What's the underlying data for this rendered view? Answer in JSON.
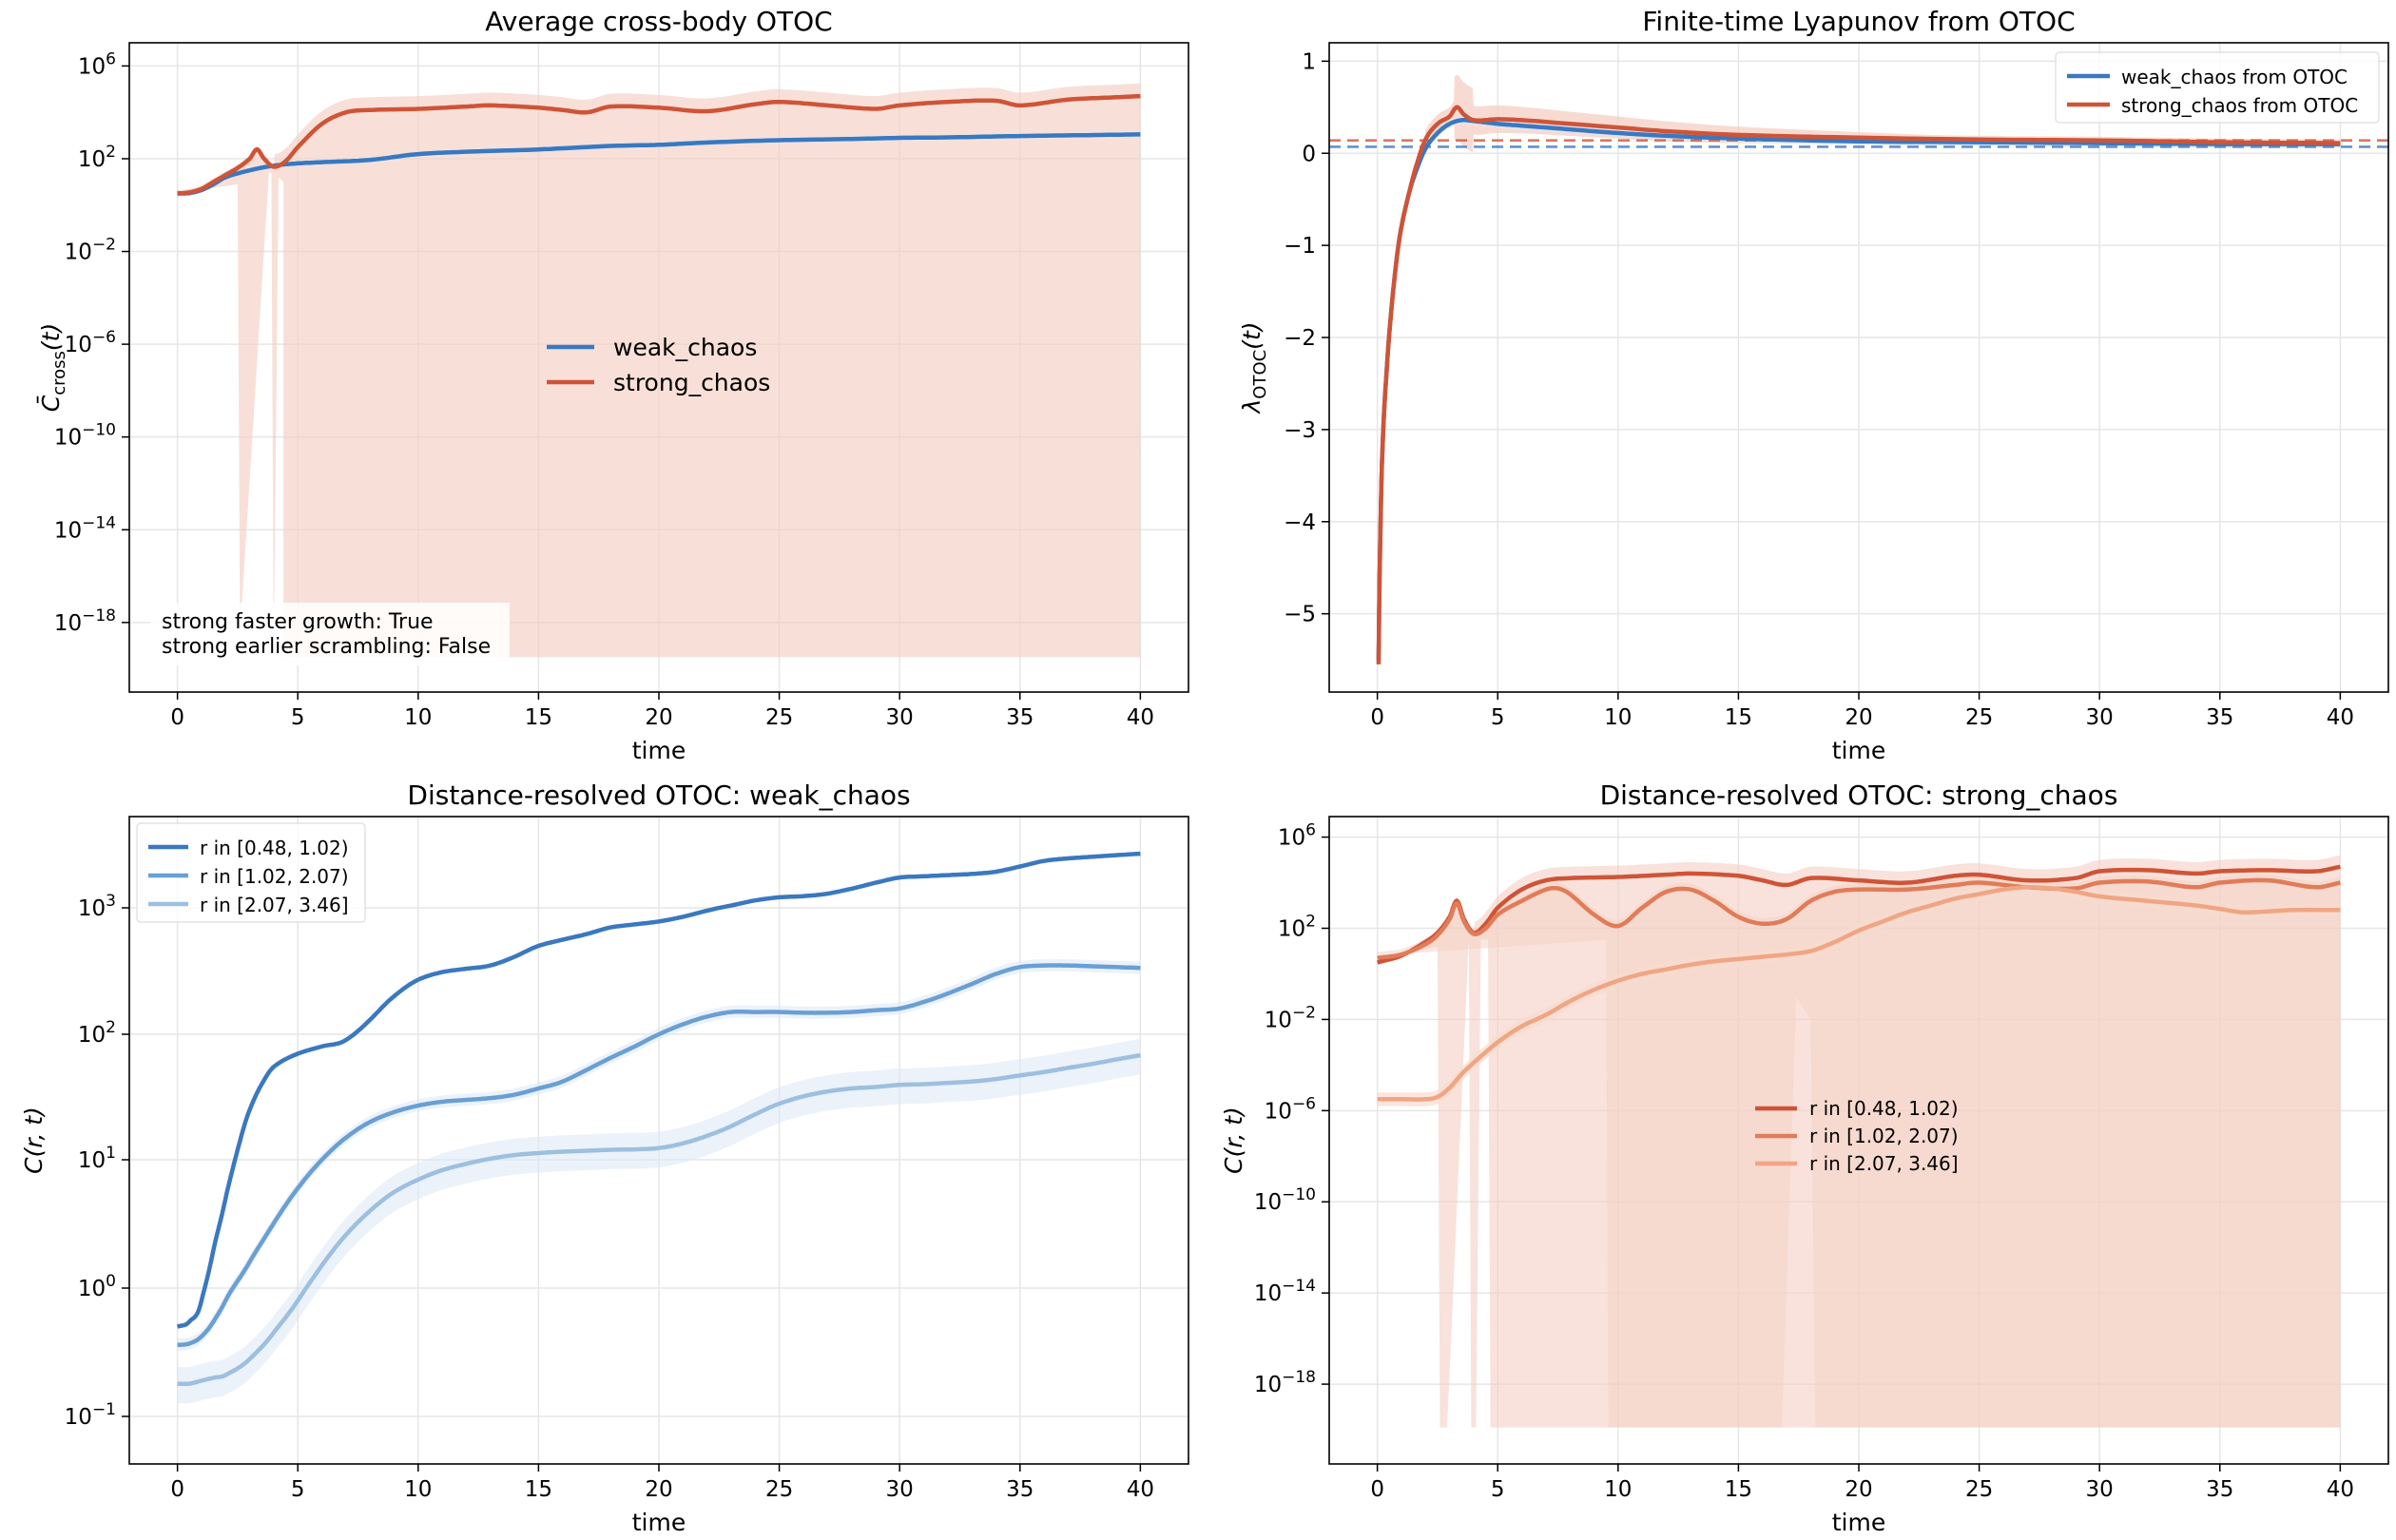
{
  "colors": {
    "weak": "#3a78bf",
    "weak_mid": "#6a9fd4",
    "weak_light": "#9dbfe0",
    "weak_band": "#dbe7f6",
    "strong": "#cf5437",
    "strong_mid": "#e17c58",
    "strong_light": "#f0a584",
    "strong_band": "#f4cfc3"
  },
  "chart_data": [
    {
      "id": "p1",
      "type": "line",
      "title": "Average cross-body OTOC",
      "xlabel": "time",
      "ylabel": "C̄cross(t)",
      "yscale": "log",
      "xlim": [
        -2,
        42
      ],
      "ylim_log10": [
        -21,
        7
      ],
      "xticks": [
        "0",
        "5",
        "10",
        "15",
        "20",
        "25",
        "30",
        "35",
        "40"
      ],
      "yticks": [
        "10^6",
        "10^2",
        "10^-2",
        "10^-6",
        "10^-10",
        "10^-14",
        "10^-18"
      ],
      "legend": {
        "position": "center",
        "entries": [
          "weak_chaos",
          "strong_chaos"
        ]
      },
      "annotation": [
        "strong faster growth: True",
        "strong earlier scrambling: False"
      ],
      "series": [
        {
          "name": "weak_chaos",
          "color_key": "weak",
          "x": [
            0,
            0.5,
            1,
            1.5,
            2,
            3,
            4,
            5,
            6,
            8,
            10,
            12,
            15,
            18,
            20,
            22,
            25,
            28,
            30,
            32,
            35,
            38,
            40
          ],
          "log10y": [
            0.5,
            0.52,
            0.65,
            0.9,
            1.2,
            1.5,
            1.7,
            1.8,
            1.85,
            1.95,
            2.2,
            2.3,
            2.4,
            2.55,
            2.6,
            2.7,
            2.8,
            2.85,
            2.9,
            2.92,
            2.98,
            3.02,
            3.05
          ]
        },
        {
          "name": "strong_chaos",
          "color_key": "strong",
          "x": [
            0,
            0.5,
            1,
            1.5,
            2,
            2.5,
            3,
            3.3,
            3.6,
            4,
            4.5,
            5,
            6,
            7,
            8,
            10,
            12,
            13,
            15,
            16,
            17,
            18,
            20,
            22,
            24,
            25,
            27,
            29,
            30,
            32,
            34,
            35,
            37,
            39,
            40
          ],
          "log10y": [
            0.5,
            0.55,
            0.7,
            1,
            1.3,
            1.6,
            2,
            2.4,
            2,
            1.65,
            1.9,
            2.5,
            3.5,
            4,
            4.1,
            4.15,
            4.25,
            4.3,
            4.2,
            4.1,
            4,
            4.25,
            4.2,
            4.05,
            4.35,
            4.45,
            4.3,
            4.15,
            4.3,
            4.45,
            4.5,
            4.3,
            4.55,
            4.65,
            4.7
          ]
        }
      ]
    },
    {
      "id": "p2",
      "type": "line",
      "title": "Finite-time Lyapunov from OTOC",
      "xlabel": "time",
      "ylabel": "λOTOC(t)",
      "yscale": "linear",
      "xlim": [
        -2,
        42
      ],
      "ylim": [
        -5.85,
        1.2
      ],
      "xticks": [
        "0",
        "5",
        "10",
        "15",
        "20",
        "25",
        "30",
        "35",
        "40"
      ],
      "yticks": [
        "1",
        "0",
        "−1",
        "−2",
        "−3",
        "−4",
        "−5"
      ],
      "legend": {
        "position": "upper right",
        "entries": [
          "weak_chaos from OTOC",
          "strong_chaos from OTOC"
        ]
      },
      "hlines": [
        {
          "y": 0.07,
          "color_key": "weak"
        },
        {
          "y": 0.14,
          "color_key": "strong"
        }
      ],
      "series": [
        {
          "name": "weak_chaos from OTOC",
          "color_key": "weak",
          "x": [
            0.05,
            0.1,
            0.2,
            0.4,
            0.6,
            0.8,
            1,
            1.3,
            1.6,
            2,
            2.5,
            3,
            3.5,
            4,
            5,
            6,
            8,
            10,
            12,
            15,
            20,
            25,
            30,
            35,
            40
          ],
          "y": [
            -5.5,
            -4.5,
            -3.3,
            -2.3,
            -1.65,
            -1.15,
            -0.8,
            -0.45,
            -0.2,
            0.05,
            0.22,
            0.32,
            0.36,
            0.35,
            0.32,
            0.3,
            0.26,
            0.22,
            0.19,
            0.16,
            0.13,
            0.12,
            0.11,
            0.1,
            0.1
          ]
        },
        {
          "name": "strong_chaos from OTOC",
          "color_key": "strong",
          "x": [
            0.05,
            0.1,
            0.2,
            0.4,
            0.6,
            0.8,
            1,
            1.3,
            1.6,
            2,
            2.5,
            3,
            3.3,
            3.6,
            4,
            5,
            6,
            8,
            10,
            12,
            15,
            20,
            25,
            30,
            35,
            40
          ],
          "y": [
            -5.55,
            -4.5,
            -3.3,
            -2.3,
            -1.65,
            -1.15,
            -0.8,
            -0.45,
            -0.15,
            0.15,
            0.32,
            0.4,
            0.5,
            0.42,
            0.36,
            0.37,
            0.36,
            0.32,
            0.28,
            0.24,
            0.2,
            0.17,
            0.15,
            0.14,
            0.12,
            0.11
          ]
        }
      ]
    },
    {
      "id": "p3",
      "type": "line",
      "title": "Distance-resolved OTOC: weak_chaos",
      "xlabel": "time",
      "ylabel": "C(r, t)",
      "yscale": "symlog",
      "xlim": [
        -2,
        42
      ],
      "xticks": [
        "0",
        "5",
        "10",
        "15",
        "20",
        "25",
        "30",
        "35",
        "40"
      ],
      "yticks": [
        "10^3",
        "10^2",
        "10^1",
        "10^0",
        "10^-1"
      ],
      "legend": {
        "position": "upper left",
        "entries": [
          "r in [0.48, 1.02)",
          "r in [1.02, 2.07)",
          "r in [2.07, 3.46]"
        ]
      },
      "series": [
        {
          "name": "r in [0.48, 1.02)",
          "color_key": "weak",
          "x": [
            0,
            0.5,
            1,
            1.5,
            2,
            2.5,
            3,
            3.5,
            4,
            5,
            6,
            7,
            8,
            9,
            10,
            11,
            12,
            13,
            14,
            15,
            16,
            17,
            18,
            19,
            20,
            21,
            22,
            23,
            24,
            25,
            26,
            27,
            28,
            29,
            30,
            31,
            32,
            33,
            34,
            35,
            36,
            37,
            38,
            39,
            40
          ],
          "y": [
            0.5,
            0.55,
            0.8,
            2,
            5,
            12,
            25,
            40,
            55,
            70,
            80,
            90,
            130,
            200,
            270,
            310,
            330,
            350,
            410,
            500,
            560,
            620,
            700,
            740,
            780,
            850,
            950,
            1050,
            1170,
            1250,
            1280,
            1350,
            1500,
            1700,
            1900,
            1950,
            2000,
            2050,
            2150,
            2400,
            2700,
            2850,
            2950,
            3050,
            3150
          ]
        },
        {
          "name": "r in [1.02, 2.07)",
          "color_key": "weak_mid",
          "x": [
            0,
            0.5,
            1,
            1.5,
            2,
            3,
            4,
            5,
            6,
            7,
            8,
            9,
            10,
            11,
            12,
            13,
            14,
            15,
            16,
            17,
            18,
            19,
            20,
            21,
            22,
            23,
            24,
            25,
            26,
            27,
            28,
            29,
            30,
            31,
            32,
            33,
            34,
            35,
            36,
            37,
            38,
            39,
            40
          ],
          "y": [
            0.36,
            0.37,
            0.42,
            0.55,
            0.8,
            1.6,
            3.2,
            6,
            10,
            15,
            20,
            24,
            27,
            29,
            30,
            31,
            33,
            37,
            42,
            52,
            65,
            80,
            100,
            120,
            138,
            150,
            150,
            150,
            148,
            148,
            150,
            155,
            160,
            180,
            210,
            250,
            300,
            340,
            350,
            350,
            345,
            340,
            335
          ]
        },
        {
          "name": "r in [2.07, 3.46]",
          "color_key": "weak_light",
          "x": [
            0,
            0.5,
            1,
            1.5,
            2,
            3,
            4,
            5,
            6,
            7,
            8,
            9,
            10,
            11,
            12,
            13,
            14,
            15,
            16,
            17,
            18,
            19,
            20,
            21,
            22,
            23,
            24,
            25,
            26,
            27,
            28,
            29,
            30,
            31,
            32,
            33,
            34,
            35,
            36,
            37,
            38,
            39,
            40
          ],
          "y": [
            0.18,
            0.18,
            0.19,
            0.2,
            0.21,
            0.28,
            0.45,
            0.8,
            1.5,
            2.6,
            4,
            5.6,
            7,
            8.3,
            9.3,
            10.2,
            10.9,
            11.3,
            11.6,
            11.8,
            12,
            12.1,
            12.4,
            13.5,
            15.5,
            18.5,
            23,
            28,
            32,
            35,
            37,
            38,
            39.5,
            40,
            41,
            42,
            44,
            47,
            50,
            54,
            58,
            63,
            68
          ]
        }
      ]
    },
    {
      "id": "p4",
      "type": "line",
      "title": "Distance-resolved OTOC: strong_chaos",
      "xlabel": "time",
      "ylabel": "C(r, t)",
      "yscale": "log",
      "xlim": [
        -2,
        42
      ],
      "ylim_log10": [
        -21.5,
        6.9
      ],
      "xticks": [
        "0",
        "5",
        "10",
        "15",
        "20",
        "25",
        "30",
        "35",
        "40"
      ],
      "yticks": [
        "10^6",
        "10^2",
        "10^-2",
        "10^-6",
        "10^-10",
        "10^-14",
        "10^-18"
      ],
      "legend": {
        "position": "center",
        "entries": [
          "r in [0.48, 1.02)",
          "r in [1.02, 2.07)",
          "r in [2.07, 3.46]"
        ]
      },
      "series": [
        {
          "name": "r in [0.48, 1.02)",
          "color_key": "strong",
          "x": [
            0,
            1,
            2,
            2.5,
            3,
            3.3,
            3.6,
            4,
            4.5,
            5,
            6,
            7,
            8,
            10,
            12,
            13,
            15,
            16,
            17,
            18,
            20,
            22,
            24,
            25,
            27,
            29,
            30,
            32,
            34,
            35,
            37,
            39,
            40
          ],
          "log10y": [
            0.5,
            0.8,
            1.4,
            1.8,
            2.5,
            3.2,
            2.4,
            1.8,
            2.2,
            2.9,
            3.7,
            4.1,
            4.2,
            4.25,
            4.35,
            4.4,
            4.3,
            4.1,
            3.9,
            4.2,
            4.1,
            4.0,
            4.3,
            4.35,
            4.1,
            4.2,
            4.5,
            4.55,
            4.4,
            4.5,
            4.55,
            4.5,
            4.7
          ]
        },
        {
          "name": "r in [1.02, 2.07)",
          "color_key": "strong_mid",
          "x": [
            0,
            1,
            2,
            2.5,
            3,
            3.3,
            3.6,
            4,
            4.5,
            5,
            6,
            7,
            7.5,
            8,
            9,
            10,
            11,
            12,
            13,
            14,
            15,
            16,
            17,
            18,
            19,
            20,
            22,
            24,
            25,
            27,
            29,
            30,
            32,
            34,
            35,
            37,
            39,
            40
          ],
          "log10y": [
            0.7,
            0.85,
            1.3,
            1.7,
            2.4,
            3.1,
            2.3,
            1.75,
            2.0,
            2.6,
            3.2,
            3.7,
            3.75,
            3.5,
            2.6,
            2.1,
            2.9,
            3.6,
            3.7,
            3.2,
            2.5,
            2.2,
            2.4,
            3.2,
            3.6,
            3.7,
            3.7,
            3.9,
            4.0,
            3.8,
            3.75,
            4.0,
            4.05,
            3.8,
            4.0,
            4.1,
            3.8,
            4.0
          ]
        },
        {
          "name": "r in [2.07, 3.46]",
          "color_key": "strong_light",
          "x": [
            0,
            1,
            2,
            2.5,
            3,
            3.5,
            4,
            5,
            6,
            7,
            8,
            9,
            10,
            11,
            12,
            13,
            14,
            15,
            16,
            17,
            18,
            19,
            20,
            21,
            22,
            23,
            24,
            25,
            26,
            27,
            28,
            29,
            30,
            32,
            34,
            35,
            36,
            38,
            40
          ],
          "log10y": [
            -5.5,
            -5.5,
            -5.5,
            -5.4,
            -5,
            -4.4,
            -3.9,
            -3,
            -2.3,
            -1.8,
            -1.2,
            -0.7,
            -0.3,
            0,
            0.2,
            0.4,
            0.55,
            0.65,
            0.75,
            0.85,
            1.0,
            1.4,
            1.9,
            2.3,
            2.7,
            3.0,
            3.3,
            3.5,
            3.7,
            3.8,
            3.75,
            3.6,
            3.4,
            3.2,
            3.0,
            2.85,
            2.7,
            2.8,
            2.8
          ]
        }
      ]
    }
  ]
}
